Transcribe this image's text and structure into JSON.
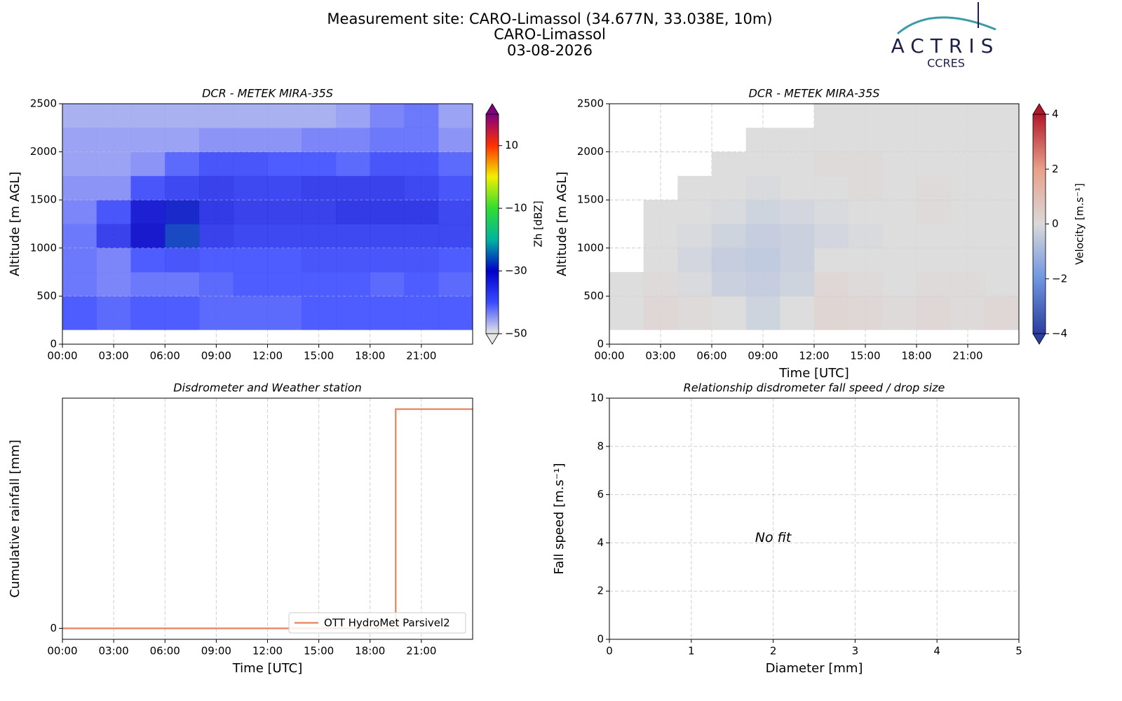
{
  "header": {
    "title_lines": [
      "Measurement site: CARO-Limassol (34.677N, 33.038E, 10m)",
      "CARO-Limassol",
      "03-08-2026"
    ]
  },
  "logo": {
    "name": "ACTRIS",
    "subtitle": "CCRES"
  },
  "chart_data": [
    {
      "type": "heatmap",
      "title": "DCR - METEK MIRA-35S",
      "ylabel": "Altitude [m AGL]",
      "xbins": [
        0,
        2,
        4,
        6,
        8,
        10,
        12,
        14,
        16,
        18,
        20,
        22,
        24
      ],
      "ybins": [
        150,
        500,
        750,
        1000,
        1250,
        1500,
        1750,
        2000,
        2250,
        2500
      ],
      "z": [
        [
          -40,
          -41,
          -40,
          -40,
          -41,
          -41,
          -41,
          -40,
          -40,
          -40,
          -40,
          -40
        ],
        [
          -42,
          -43,
          -42,
          -42,
          -41,
          -40,
          -40,
          -40,
          -40,
          -41,
          -40,
          -41
        ],
        [
          -42,
          -43,
          -40,
          -39,
          -40,
          -40,
          -40,
          -39,
          -39,
          -39,
          -39,
          -40
        ],
        [
          -42,
          -36,
          -30,
          -27,
          -36,
          -37,
          -37,
          -37,
          -37,
          -37,
          -37,
          -37
        ],
        [
          -43,
          -39,
          -31,
          -29,
          -35,
          -36,
          -36,
          -36,
          -35,
          -35,
          -35,
          -37
        ],
        [
          -44,
          -44,
          -39,
          -37,
          -36,
          -37,
          -37,
          -36,
          -36,
          -36,
          -37,
          -39
        ],
        [
          -45,
          -45,
          -44,
          -41,
          -39,
          -39,
          -40,
          -40,
          -41,
          -39,
          -39,
          -41
        ],
        [
          -45,
          -45,
          -45,
          -45,
          -44,
          -44,
          -44,
          -43,
          -43,
          -42,
          -42,
          -44
        ],
        [
          -46,
          -46,
          -46,
          -46,
          -46,
          -46,
          -46,
          -46,
          -45,
          -43,
          -42,
          -45
        ]
      ],
      "xlim": [
        0,
        24
      ],
      "xticks": [
        {
          "value": 0,
          "label": "00:00"
        },
        {
          "value": 3,
          "label": "03:00"
        },
        {
          "value": 6,
          "label": "06:00"
        },
        {
          "value": 9,
          "label": "09:00"
        },
        {
          "value": 12,
          "label": "12:00"
        },
        {
          "value": 15,
          "label": "15:00"
        },
        {
          "value": 18,
          "label": "18:00"
        },
        {
          "value": 21,
          "label": "21:00"
        }
      ],
      "ylim": [
        0,
        2500
      ],
      "yticks": [
        0,
        500,
        1000,
        1500,
        2000,
        2500
      ],
      "grid": true,
      "colorbar": {
        "label": "Zh [dBZ]",
        "clim": [
          -50,
          20
        ],
        "ticks": [
          {
            "value": -50,
            "label": "−50"
          },
          {
            "value": -30,
            "label": "−30"
          },
          {
            "value": -10,
            "label": "−10"
          },
          10
        ],
        "colors": [
          "#e6e6e6",
          "#3a4bff",
          "#0000c8",
          "#00b4a0",
          "#32dc32",
          "#f0f000",
          "#ff3000",
          "#800080"
        ]
      }
    },
    {
      "type": "heatmap",
      "title": "DCR - METEK MIRA-35S",
      "ylabel": "Altitude [m AGL]",
      "xlabel": "Time [UTC]",
      "xbins": [
        0,
        2,
        4,
        6,
        8,
        10,
        12,
        14,
        16,
        18,
        20,
        22,
        24
      ],
      "ybins": [
        150,
        500,
        750,
        1000,
        1250,
        1500,
        1750,
        2000,
        2250,
        2500
      ],
      "z": [
        [
          0,
          0.2,
          0.1,
          0,
          -0.3,
          0,
          0.3,
          0.2,
          0.1,
          0.2,
          0.1,
          0.2
        ],
        [
          0,
          0.1,
          -0.1,
          -0.4,
          -0.5,
          -0.3,
          0.2,
          0.1,
          0,
          0.1,
          0.1,
          0
        ],
        [
          null,
          0,
          -0.2,
          -0.5,
          -0.6,
          -0.4,
          0,
          0,
          0,
          0,
          0,
          0
        ],
        [
          null,
          0,
          -0.1,
          -0.3,
          -0.5,
          -0.4,
          -0.2,
          -0.1,
          0,
          0,
          0,
          0
        ],
        [
          null,
          0,
          0,
          -0.1,
          -0.3,
          -0.2,
          -0.1,
          0,
          0,
          0.1,
          0,
          0
        ],
        [
          null,
          null,
          0,
          0,
          -0.1,
          0,
          0,
          0.1,
          0,
          0.1,
          0,
          0
        ],
        [
          null,
          null,
          null,
          0,
          0,
          0,
          0.1,
          0.1,
          0,
          0,
          0,
          0
        ],
        [
          null,
          null,
          null,
          null,
          0,
          0,
          0,
          0,
          0,
          0,
          0,
          0
        ],
        [
          null,
          null,
          null,
          null,
          null,
          null,
          0,
          0,
          0,
          0,
          0,
          0
        ]
      ],
      "xlim": [
        0,
        24
      ],
      "xticks": [
        {
          "value": 0,
          "label": "00:00"
        },
        {
          "value": 3,
          "label": "03:00"
        },
        {
          "value": 6,
          "label": "06:00"
        },
        {
          "value": 9,
          "label": "09:00"
        },
        {
          "value": 12,
          "label": "12:00"
        },
        {
          "value": 15,
          "label": "15:00"
        },
        {
          "value": 18,
          "label": "18:00"
        },
        {
          "value": 21,
          "label": "21:00"
        }
      ],
      "ylim": [
        0,
        2500
      ],
      "yticks": [
        0,
        500,
        1000,
        1500,
        2000,
        2500
      ],
      "grid": true,
      "colorbar": {
        "label": "Velocity [m.s⁻¹]",
        "clim": [
          -4,
          4
        ],
        "ticks": [
          {
            "value": -4,
            "label": "−4"
          },
          {
            "value": -2,
            "label": "−2"
          },
          0,
          2,
          4
        ],
        "colors": [
          "#2c3e9f",
          "#6f95e0",
          "#d9d9d9",
          "#e8a08a",
          "#b2182b"
        ]
      }
    },
    {
      "type": "line",
      "title": "Disdrometer and Weather station",
      "ylabel": "Cumulative rainfall [mm]",
      "xlabel": "Time [UTC]",
      "x": [
        0,
        19.5,
        19.5,
        24
      ],
      "series": [
        {
          "name": "OTT HydroMet Parsivel2",
          "color": "#e8825f",
          "values": [
            0,
            0,
            0.1,
            0.1
          ]
        }
      ],
      "xlim": [
        0,
        24
      ],
      "xticks": [
        {
          "value": 0,
          "label": "00:00"
        },
        {
          "value": 3,
          "label": "03:00"
        },
        {
          "value": 6,
          "label": "06:00"
        },
        {
          "value": 9,
          "label": "09:00"
        },
        {
          "value": 12,
          "label": "12:00"
        },
        {
          "value": 15,
          "label": "15:00"
        },
        {
          "value": 18,
          "label": "18:00"
        },
        {
          "value": 21,
          "label": "21:00"
        }
      ],
      "ylim": [
        -0.005,
        0.105
      ],
      "yticks": [
        0
      ],
      "grid": "x",
      "legend": "lower right"
    },
    {
      "type": "scatter",
      "title": "Relationship disdrometer fall speed / drop size",
      "ylabel": "Fall speed [m.s⁻¹]",
      "xlabel": "Diameter [mm]",
      "annotation": "No fit",
      "xlim": [
        0,
        5
      ],
      "xticks": [
        0,
        1,
        2,
        3,
        4,
        5
      ],
      "ylim": [
        0,
        10
      ],
      "yticks": [
        0,
        2,
        4,
        6,
        8,
        10
      ],
      "grid": true
    }
  ]
}
